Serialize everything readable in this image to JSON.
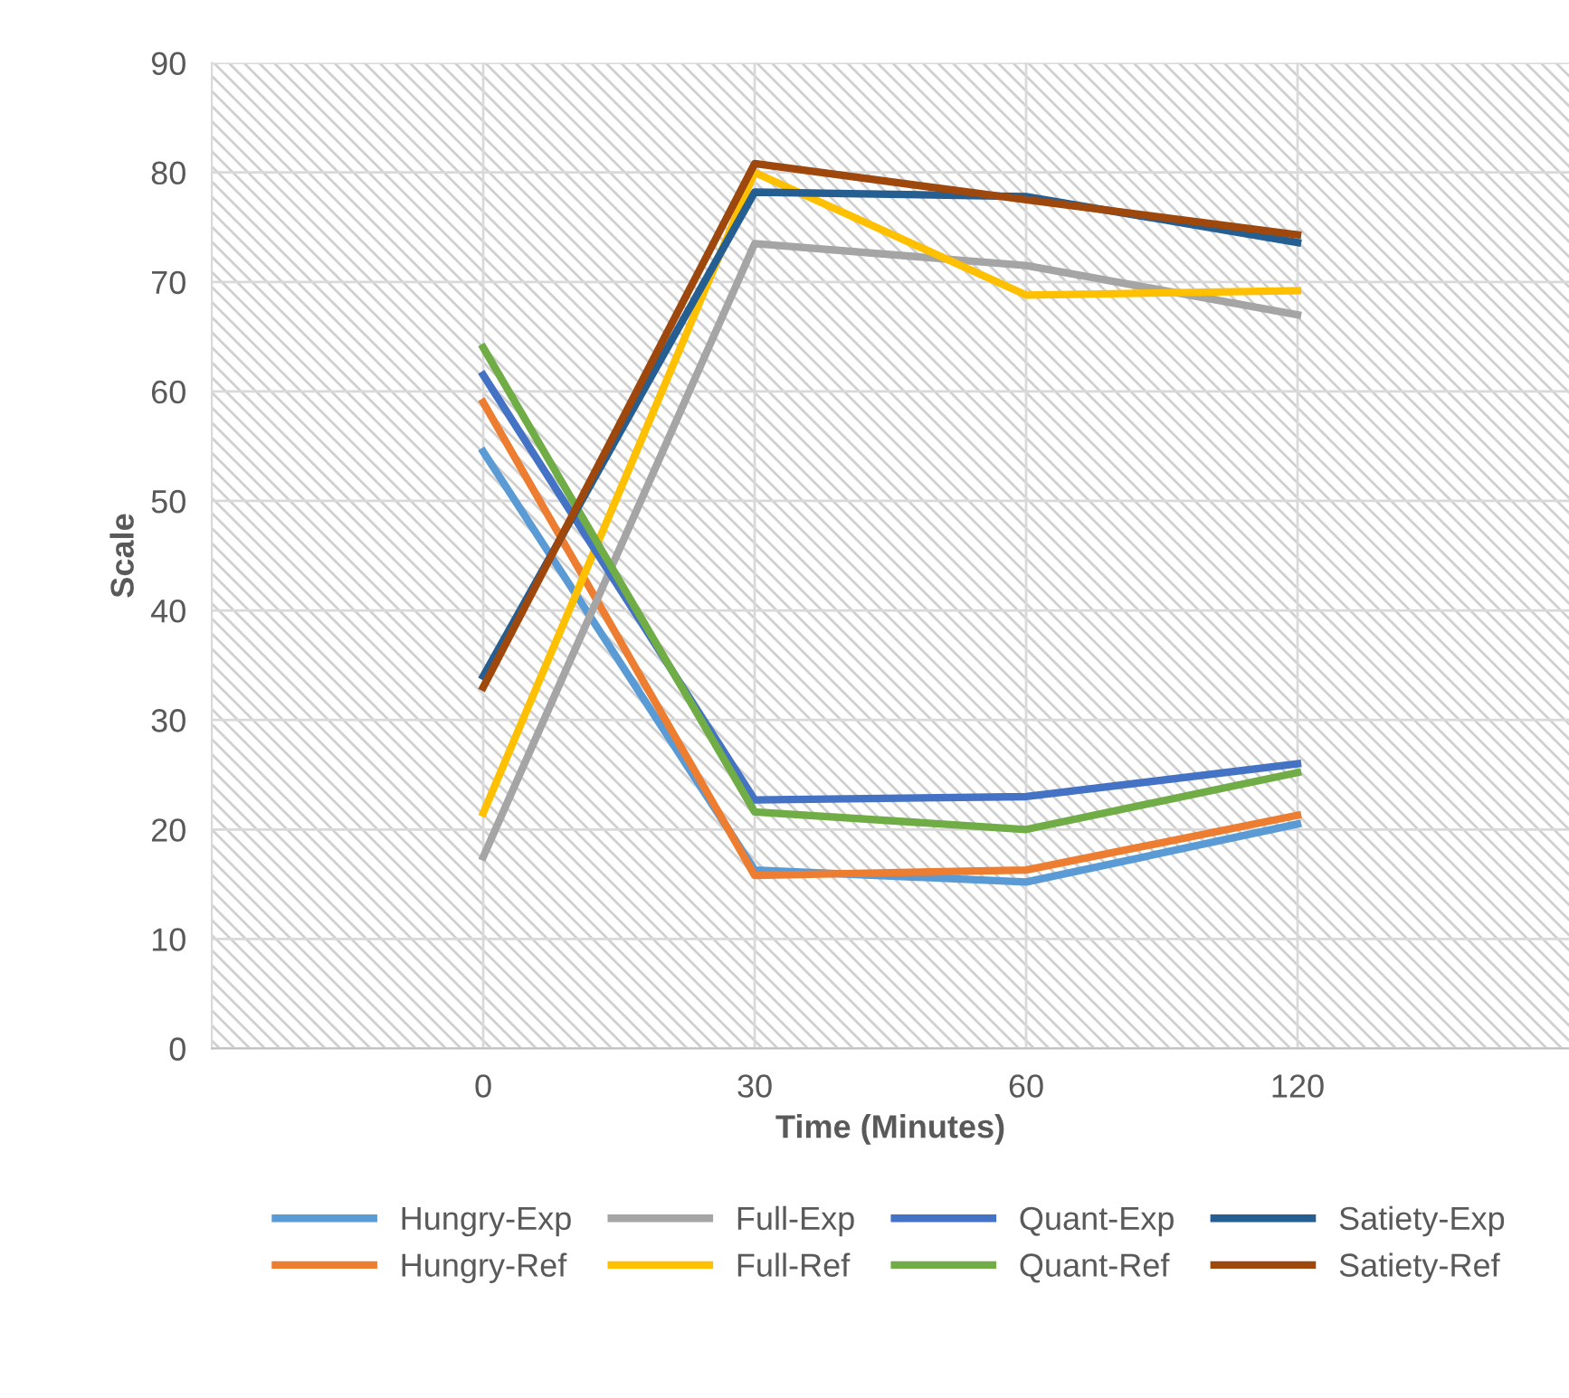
{
  "chart_data": {
    "type": "line",
    "xlabel": "Time (Minutes)",
    "ylabel": "Scale",
    "categories": [
      "0",
      "30",
      "60",
      "120"
    ],
    "ylim": [
      0,
      90
    ],
    "yticks": [
      0,
      10,
      20,
      30,
      40,
      50,
      60,
      70,
      80,
      90
    ],
    "grid": true,
    "legend": "bottom",
    "marker": "none",
    "line_style": "solid",
    "series": [
      {
        "name": "Hungry-Exp",
        "color": "#5b9bd5",
        "values": [
          54.5,
          16.3,
          15.2,
          20.5
        ]
      },
      {
        "name": "Hungry-Ref",
        "color": "#ed7d31",
        "values": [
          59,
          15.8,
          16.3,
          21.3
        ]
      },
      {
        "name": "Full-Exp",
        "color": "#a5a5a5",
        "values": [
          17.5,
          73.5,
          71.5,
          67
        ]
      },
      {
        "name": "Full-Ref",
        "color": "#ffc000",
        "values": [
          21.5,
          80,
          68.8,
          69.2
        ]
      },
      {
        "name": "Quant-Exp",
        "color": "#4472c4",
        "values": [
          61.5,
          22.7,
          23,
          26
        ]
      },
      {
        "name": "Quant-Ref",
        "color": "#70ad47",
        "values": [
          64,
          21.6,
          20,
          25.2
        ]
      },
      {
        "name": "Satiety-Exp",
        "color": "#255e91",
        "values": [
          34,
          78.2,
          77.8,
          73.6
        ]
      },
      {
        "name": "Satiety-Ref",
        "color": "#9e480e",
        "values": [
          33,
          80.8,
          77.5,
          74.3
        ]
      }
    ]
  }
}
